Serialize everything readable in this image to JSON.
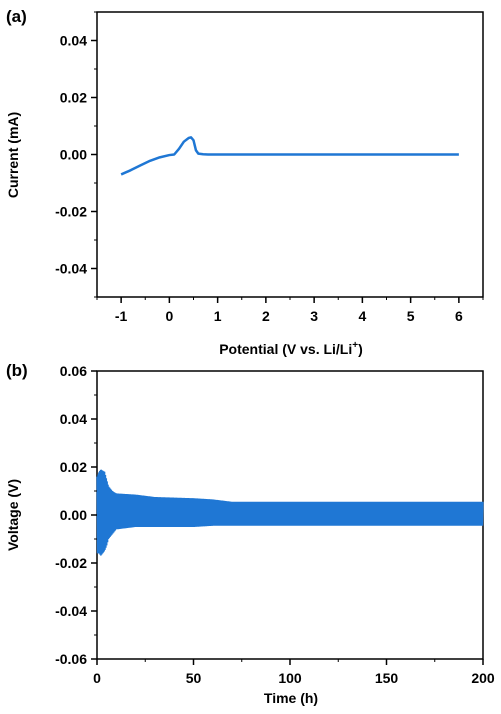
{
  "chart_data": [
    {
      "panel": "(a)",
      "type": "line",
      "title": "",
      "xlabel": "Potential (V vs. Li/Li",
      "xlabel_sup": "+",
      "xlabel_end": ")",
      "ylabel": "Current (mA)",
      "xlim": [
        -1.5,
        6.5
      ],
      "ylim": [
        -0.05,
        0.05
      ],
      "xticks": [
        -1,
        0,
        1,
        2,
        3,
        4,
        5,
        6
      ],
      "xtick_labels": [
        "-1",
        "0",
        "1",
        "2",
        "3",
        "4",
        "5",
        "6"
      ],
      "yticks": [
        0.04,
        0.02,
        0.0,
        -0.02,
        -0.04
      ],
      "ytick_labels": [
        "0.04",
        "0.02",
        "0.00",
        "-0.02",
        "-0.04"
      ],
      "grid": false,
      "series": [
        {
          "color": "#1f77d4",
          "x": [
            -1.0,
            -0.8,
            -0.6,
            -0.4,
            -0.2,
            0.0,
            0.1,
            0.2,
            0.3,
            0.4,
            0.45,
            0.5,
            0.55,
            0.6,
            0.7,
            0.8,
            1.0,
            2.0,
            3.0,
            4.0,
            5.0,
            6.0
          ],
          "y": [
            -0.007,
            -0.0055,
            -0.0038,
            -0.0022,
            -0.001,
            -0.0002,
            0.0,
            0.002,
            0.0045,
            0.0058,
            0.006,
            0.005,
            0.0015,
            0.0003,
            0.0001,
            0.0,
            0.0,
            0.0,
            0.0,
            0.0,
            0.0,
            0.0
          ]
        }
      ]
    },
    {
      "panel": "(b)",
      "type": "line",
      "title": "",
      "xlabel": "Time (h)",
      "ylabel": "Voltage (V)",
      "xlim": [
        0,
        200
      ],
      "ylim": [
        -0.06,
        0.06
      ],
      "xticks": [
        0,
        50,
        100,
        150,
        200
      ],
      "xtick_labels": [
        "0",
        "50",
        "100",
        "150",
        "200"
      ],
      "yticks": [
        0.06,
        0.04,
        0.02,
        0.0,
        -0.02,
        -0.04,
        -0.06
      ],
      "ytick_labels": [
        "0.06",
        "0.04",
        "0.02",
        "0.00",
        "-0.02",
        "-0.04",
        "-0.06"
      ],
      "grid": false,
      "series": [
        {
          "color": "#1f77d4",
          "description_of_signal": "oscillating voltage; amplitude envelope over time",
          "envelope_t": [
            0,
            1,
            2,
            4,
            5,
            6,
            8,
            10,
            20,
            30,
            50,
            60,
            70,
            100,
            150,
            200
          ],
          "envelope_amp": [
            0.016,
            0.018,
            0.019,
            0.018,
            0.015,
            0.012,
            0.01,
            0.009,
            0.0085,
            0.0075,
            0.007,
            0.0065,
            0.0055,
            0.0055,
            0.0055,
            0.0055
          ],
          "envelope_low": [
            -0.016,
            -0.016,
            -0.017,
            -0.015,
            -0.013,
            -0.01,
            -0.008,
            -0.006,
            -0.005,
            -0.005,
            -0.005,
            -0.0045,
            -0.0045,
            -0.0045,
            -0.0045,
            -0.0045
          ]
        }
      ]
    }
  ]
}
